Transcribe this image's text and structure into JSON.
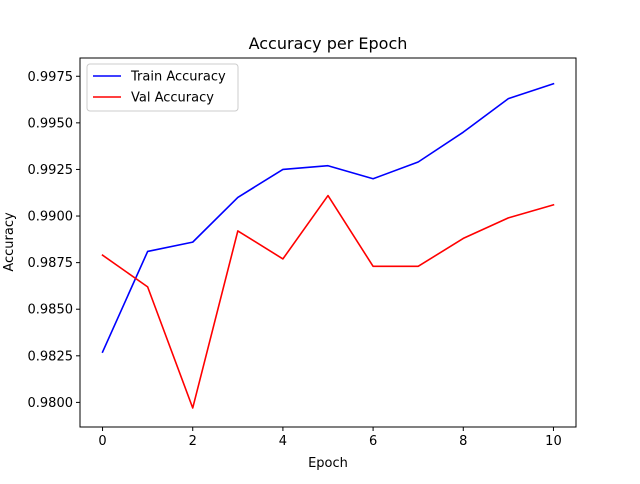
{
  "chart_data": {
    "type": "line",
    "title": "Accuracy per Epoch",
    "xlabel": "Epoch",
    "ylabel": "Accuracy",
    "x": [
      0,
      1,
      2,
      3,
      4,
      5,
      6,
      7,
      8,
      9,
      10
    ],
    "xlim": [
      -0.5,
      10.5
    ],
    "ylim": [
      0.97868,
      0.99848
    ],
    "xticks": [
      0,
      2,
      4,
      6,
      8,
      10
    ],
    "xtick_labels": [
      "0",
      "2",
      "4",
      "6",
      "8",
      "10"
    ],
    "yticks": [
      0.98,
      0.9825,
      0.985,
      0.9875,
      0.99,
      0.9925,
      0.995,
      0.9975
    ],
    "ytick_labels": [
      "0.9800",
      "0.9825",
      "0.9850",
      "0.9875",
      "0.9900",
      "0.9925",
      "0.9950",
      "0.9975"
    ],
    "grid": false,
    "legend_position": "upper-left",
    "series": [
      {
        "name": "Train Accuracy",
        "color": "#0000ff",
        "values": [
          0.9827,
          0.9881,
          0.9886,
          0.991,
          0.9925,
          0.9927,
          0.992,
          0.9929,
          0.9945,
          0.9963,
          0.9971
        ]
      },
      {
        "name": "Val Accuracy",
        "color": "#ff0000",
        "values": [
          0.9879,
          0.9862,
          0.9797,
          0.9892,
          0.9877,
          0.9911,
          0.9873,
          0.9873,
          0.9888,
          0.9899,
          0.9906
        ]
      }
    ]
  }
}
